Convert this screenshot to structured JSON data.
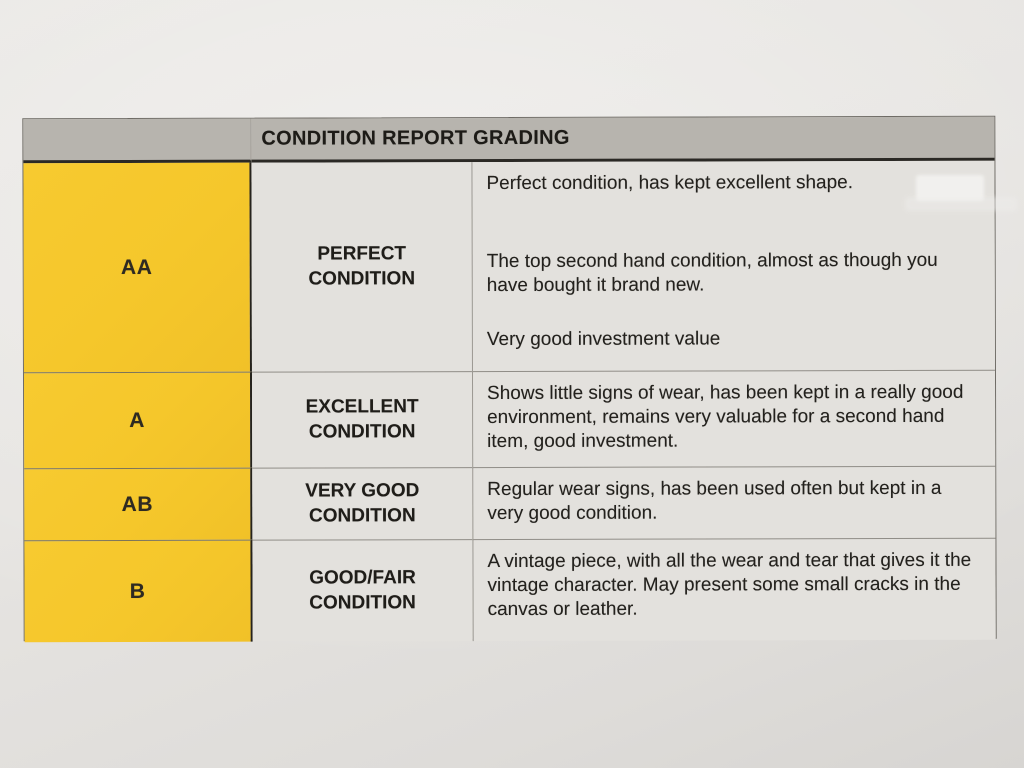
{
  "table": {
    "title": "CONDITION REPORT GRADING",
    "rows": [
      {
        "grade": "AA",
        "condition": "PERFECT CONDITION",
        "description": [
          "Perfect condition, has kept excellent shape.",
          "The top second hand condition, almost as though you have bought it brand new.",
          "Very good investment value"
        ]
      },
      {
        "grade": "A",
        "condition": "EXCELLENT CONDITION",
        "description": [
          "Shows little signs of wear, has been kept in a really good environment, remains very valuable for a second hand item, good investment."
        ]
      },
      {
        "grade": "AB",
        "condition": "VERY GOOD CONDITION",
        "description": [
          "Regular wear signs, has been used often but kept in a very good condition."
        ]
      },
      {
        "grade": "B",
        "condition": "GOOD/FAIR CONDITION",
        "description": [
          "A vintage piece, with all the wear and tear that gives it the vintage character. May present some small cracks in the canvas or leather."
        ]
      }
    ],
    "colors": {
      "grade_column_bg": "#f5c72b",
      "header_bg": "#b7b4ae",
      "cell_bg": "#e3e1dd",
      "paper_bg": "#e8e6e3",
      "text": "#23211d"
    }
  }
}
